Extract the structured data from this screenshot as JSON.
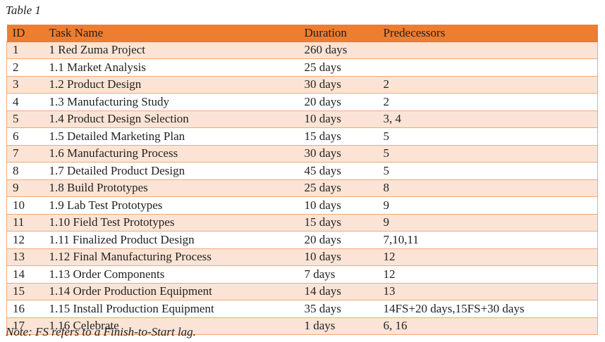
{
  "caption": "Table 1",
  "headers": {
    "id": "ID",
    "task": "Task Name",
    "duration": "Duration",
    "predecessors": "Predecessors"
  },
  "rows": [
    {
      "id": "1",
      "task": "1 Red Zuma Project",
      "duration": "260 days",
      "predecessors": ""
    },
    {
      "id": "2",
      "task": "1.1 Market Analysis",
      "duration": "25 days",
      "predecessors": ""
    },
    {
      "id": "3",
      "task": "1.2 Product Design",
      "duration": "30 days",
      "predecessors": "2"
    },
    {
      "id": "4",
      "task": "1.3 Manufacturing Study",
      "duration": "20 days",
      "predecessors": "2"
    },
    {
      "id": "5",
      "task": "1.4 Product Design Selection",
      "duration": "10 days",
      "predecessors": "3, 4"
    },
    {
      "id": "6",
      "task": "1.5 Detailed Marketing Plan",
      "duration": "15 days",
      "predecessors": "5"
    },
    {
      "id": "7",
      "task": "1.6 Manufacturing Process",
      "duration": "30 days",
      "predecessors": "5"
    },
    {
      "id": "8",
      "task": "1.7 Detailed Product Design",
      "duration": "45 days",
      "predecessors": "5"
    },
    {
      "id": "9",
      "task": "1.8 Build Prototypes",
      "duration": "25 days",
      "predecessors": "8"
    },
    {
      "id": "10",
      "task": "1.9 Lab Test Prototypes",
      "duration": "10 days",
      "predecessors": "9"
    },
    {
      "id": "11",
      "task": "1.10 Field Test Prototypes",
      "duration": "15 days",
      "predecessors": "9"
    },
    {
      "id": "12",
      "task": "1.11 Finalized Product Design",
      "duration": "20 days",
      "predecessors": "7,10,11"
    },
    {
      "id": "13",
      "task": "1.12 Final Manufacturing Process",
      "duration": "10 days",
      "predecessors": "12"
    },
    {
      "id": "14",
      "task": "1.13 Order Components",
      "duration": "7 days",
      "predecessors": "12"
    },
    {
      "id": "15",
      "task": "1.14 Order Production Equipment",
      "duration": "14 days",
      "predecessors": "13"
    },
    {
      "id": "16",
      "task": "1.15 Install Production Equipment",
      "duration": "35 days",
      "predecessors": "14FS+20 days,15FS+30 days"
    },
    {
      "id": "17",
      "task": "1.16 Celebrate",
      "duration": "1 days",
      "predecessors": "6, 16"
    }
  ],
  "note": "Note: FS refers to a Finish-to-Start lag.",
  "colors": {
    "header": "#ed7d31",
    "band": "#fbe4d5",
    "border": "#f0a878"
  }
}
